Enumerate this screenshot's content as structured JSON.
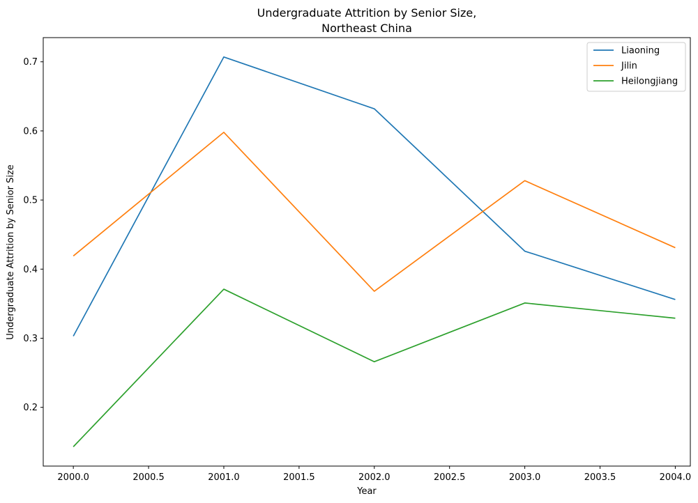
{
  "chart_data": {
    "type": "line",
    "title_lines": [
      "Undergraduate Attrition by Senior Size,",
      "Northeast China"
    ],
    "xlabel": "Year",
    "ylabel": "Undergraduate Attrition by Senior Size",
    "xlim": [
      1999.8,
      2004.1
    ],
    "ylim": [
      0.115,
      0.735
    ],
    "xticks": [
      2000.0,
      2000.5,
      2001.0,
      2001.5,
      2002.0,
      2002.5,
      2003.0,
      2003.5,
      2004.0
    ],
    "xtick_labels": [
      "2000.0",
      "2000.5",
      "2001.0",
      "2001.5",
      "2002.0",
      "2002.5",
      "2003.0",
      "2003.5",
      "2004.0"
    ],
    "yticks": [
      0.2,
      0.3,
      0.4,
      0.5,
      0.6,
      0.7
    ],
    "ytick_labels": [
      "0.2",
      "0.3",
      "0.4",
      "0.5",
      "0.6",
      "0.7"
    ],
    "x": [
      2000,
      2001,
      2002,
      2003,
      2004
    ],
    "series": [
      {
        "name": "Liaoning",
        "color": "#1f77b4",
        "values": [
          0.303,
          0.707,
          0.632,
          0.426,
          0.356
        ]
      },
      {
        "name": "Jilin",
        "color": "#ff7f0e",
        "values": [
          0.419,
          0.598,
          0.368,
          0.528,
          0.431
        ]
      },
      {
        "name": "Heilongjiang",
        "color": "#2ca02c",
        "values": [
          0.143,
          0.371,
          0.266,
          0.351,
          0.329
        ]
      }
    ],
    "legend_position": "upper-right",
    "grid": false
  }
}
